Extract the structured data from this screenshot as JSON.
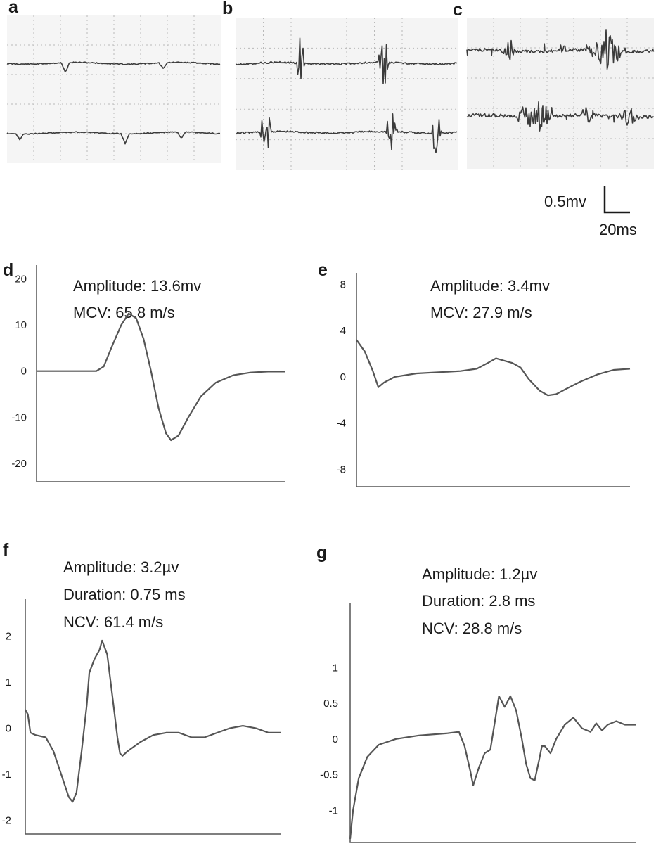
{
  "colors": {
    "trace": "#3b3b3b",
    "curve": "#555555",
    "grid": "#b9b9b9",
    "panel_bg": "#f3f3f3"
  },
  "emg_panels": [
    {
      "label": "a"
    },
    {
      "label": "b"
    },
    {
      "label": "c"
    }
  ],
  "scale_bar": {
    "voltage_label": "0.5mv",
    "time_label": "20ms"
  },
  "chart_data": [
    {
      "panel": "d",
      "type": "line",
      "annotations": [
        "Amplitude: 13.6mv",
        "MCV: 65.8 m/s"
      ],
      "yticks": [
        "20",
        "10",
        "0",
        "-10",
        "-20"
      ],
      "ylim": [
        -24,
        23
      ],
      "xlim": [
        0,
        100
      ],
      "points": [
        [
          0,
          0
        ],
        [
          24,
          0
        ],
        [
          27,
          1
        ],
        [
          30,
          5
        ],
        [
          34,
          10
        ],
        [
          37,
          12.5
        ],
        [
          40,
          11.5
        ],
        [
          43,
          7
        ],
        [
          46,
          0
        ],
        [
          49,
          -8
        ],
        [
          52,
          -13.5
        ],
        [
          54,
          -15
        ],
        [
          57,
          -14
        ],
        [
          61,
          -10
        ],
        [
          66,
          -5.5
        ],
        [
          72,
          -2.5
        ],
        [
          79,
          -0.9
        ],
        [
          86,
          -0.3
        ],
        [
          93,
          -0.1
        ],
        [
          100,
          -0.1
        ]
      ]
    },
    {
      "panel": "e",
      "type": "line",
      "annotations": [
        "Amplitude: 3.4mv",
        "MCV: 27.9 m/s"
      ],
      "yticks": [
        "8",
        "4",
        "0",
        "-4",
        "-8"
      ],
      "ylim": [
        -9.5,
        9
      ],
      "xlim": [
        0,
        100
      ],
      "points": [
        [
          0,
          3.2
        ],
        [
          3,
          2.2
        ],
        [
          6,
          0.5
        ],
        [
          8,
          -0.9
        ],
        [
          10,
          -0.5
        ],
        [
          14,
          0
        ],
        [
          22,
          0.3
        ],
        [
          30,
          0.4
        ],
        [
          38,
          0.5
        ],
        [
          44,
          0.7
        ],
        [
          48,
          1.2
        ],
        [
          51,
          1.6
        ],
        [
          54,
          1.4
        ],
        [
          57,
          1.2
        ],
        [
          60,
          0.8
        ],
        [
          63,
          -0.2
        ],
        [
          67,
          -1.2
        ],
        [
          70,
          -1.6
        ],
        [
          73,
          -1.5
        ],
        [
          77,
          -1
        ],
        [
          82,
          -0.4
        ],
        [
          88,
          0.2
        ],
        [
          94,
          0.6
        ],
        [
          100,
          0.7
        ]
      ]
    },
    {
      "panel": "f",
      "type": "line",
      "annotations": [
        "Amplitude: 3.2µv",
        "Duration: 0.75 ms",
        "NCV: 61.4 m/s"
      ],
      "yticks": [
        "2",
        "1",
        "0",
        "-1",
        "-2"
      ],
      "ylim": [
        -2.3,
        2.8
      ],
      "xlim": [
        0,
        100
      ],
      "points": [
        [
          0,
          0.4
        ],
        [
          1,
          0.3
        ],
        [
          2,
          -0.1
        ],
        [
          4,
          -0.15
        ],
        [
          8,
          -0.2
        ],
        [
          11,
          -0.5
        ],
        [
          14,
          -1
        ],
        [
          17,
          -1.5
        ],
        [
          18.5,
          -1.6
        ],
        [
          20,
          -1.4
        ],
        [
          22,
          -0.5
        ],
        [
          24,
          0.5
        ],
        [
          25,
          1.2
        ],
        [
          27,
          1.5
        ],
        [
          29,
          1.7
        ],
        [
          30,
          1.9
        ],
        [
          32,
          1.6
        ],
        [
          34,
          0.7
        ],
        [
          36,
          -0.2
        ],
        [
          37,
          -0.55
        ],
        [
          38,
          -0.6
        ],
        [
          40,
          -0.5
        ],
        [
          45,
          -0.3
        ],
        [
          50,
          -0.15
        ],
        [
          55,
          -0.1
        ],
        [
          60,
          -0.1
        ],
        [
          65,
          -0.2
        ],
        [
          70,
          -0.2
        ],
        [
          75,
          -0.1
        ],
        [
          80,
          0
        ],
        [
          85,
          0.05
        ],
        [
          90,
          0
        ],
        [
          95,
          -0.1
        ],
        [
          100,
          -0.1
        ]
      ]
    },
    {
      "panel": "g",
      "type": "line",
      "annotations": [
        "Amplitude: 1.2µv",
        "Duration: 2.8 ms",
        "NCV: 28.8 m/s"
      ],
      "yticks": [
        "1",
        "0.5",
        "0",
        "-0.5",
        "-1"
      ],
      "ylim": [
        -1.45,
        1.9
      ],
      "xlim": [
        0,
        100
      ],
      "points": [
        [
          0,
          -1.4
        ],
        [
          1,
          -1
        ],
        [
          3,
          -0.55
        ],
        [
          6,
          -0.25
        ],
        [
          10,
          -0.08
        ],
        [
          16,
          0
        ],
        [
          24,
          0.05
        ],
        [
          34,
          0.08
        ],
        [
          38,
          0.1
        ],
        [
          40,
          -0.1
        ],
        [
          42,
          -0.45
        ],
        [
          43,
          -0.65
        ],
        [
          45,
          -0.4
        ],
        [
          47,
          -0.2
        ],
        [
          49,
          -0.15
        ],
        [
          50,
          0.1
        ],
        [
          52,
          0.6
        ],
        [
          54,
          0.45
        ],
        [
          56,
          0.6
        ],
        [
          58,
          0.4
        ],
        [
          60,
          0
        ],
        [
          61.5,
          -0.35
        ],
        [
          63,
          -0.55
        ],
        [
          64.5,
          -0.58
        ],
        [
          66,
          -0.3
        ],
        [
          67,
          -0.1
        ],
        [
          68,
          -0.1
        ],
        [
          70,
          -0.2
        ],
        [
          72,
          0
        ],
        [
          75,
          0.2
        ],
        [
          78,
          0.3
        ],
        [
          81,
          0.15
        ],
        [
          84,
          0.1
        ],
        [
          86,
          0.22
        ],
        [
          88,
          0.12
        ],
        [
          90,
          0.2
        ],
        [
          93,
          0.25
        ],
        [
          96,
          0.2
        ],
        [
          100,
          0.2
        ]
      ]
    }
  ]
}
